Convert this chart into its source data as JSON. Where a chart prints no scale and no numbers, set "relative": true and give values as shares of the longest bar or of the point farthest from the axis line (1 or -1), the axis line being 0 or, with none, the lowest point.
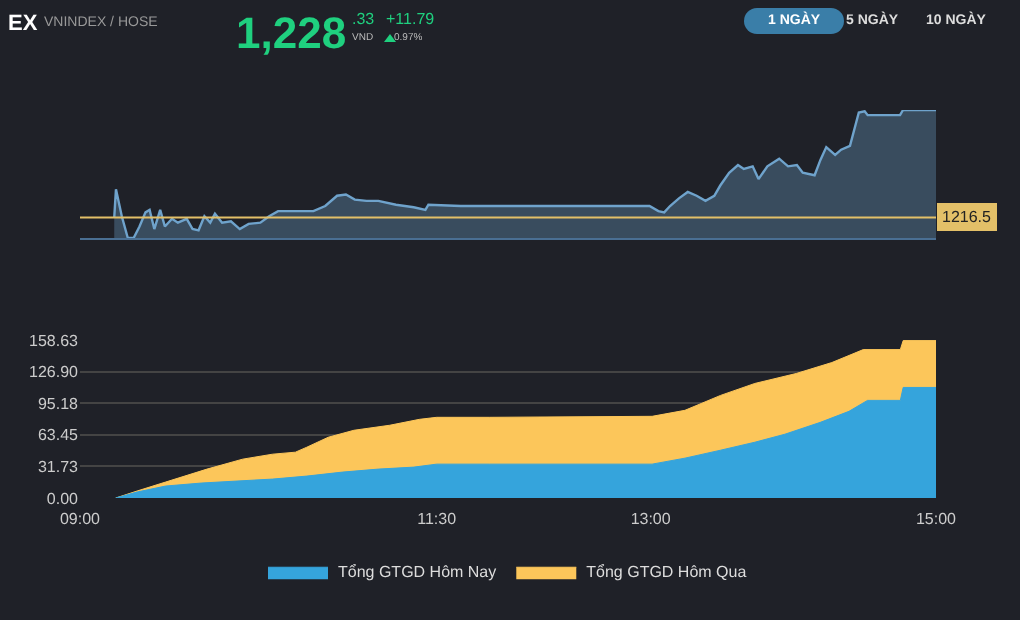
{
  "chart_data": [
    {
      "type": "area",
      "title": "EX",
      "subtitle": "VNINDEX / HOSE",
      "annotations": [
        "1,228",
        ".33",
        "VND",
        "+11.79",
        "0.97%",
        "1 NGÀY",
        "5 NGÀY",
        "10 NGÀY",
        "1216.5"
      ],
      "x": [
        9.24,
        9.252,
        9.293,
        9.335,
        9.376,
        9.417,
        9.459,
        9.488,
        9.521,
        9.562,
        9.595,
        9.645,
        9.686,
        9.748,
        9.789,
        9.831,
        9.872,
        9.913,
        9.946,
        9.996,
        10.058,
        10.12,
        10.182,
        10.264,
        10.326,
        10.388,
        10.512,
        10.636,
        10.719,
        10.802,
        10.864,
        10.926,
        11.008,
        11.091,
        11.215,
        11.339,
        11.421,
        11.442,
        11.669,
        12.992,
        13.054,
        13.095,
        13.136,
        13.198,
        13.26,
        13.322,
        13.384,
        13.446,
        13.488,
        13.55,
        13.612,
        13.653,
        13.715,
        13.756,
        13.818,
        13.901,
        13.963,
        14.025,
        14.066,
        14.149,
        14.19,
        14.231,
        14.293,
        14.335,
        14.397,
        14.459,
        14.5,
        14.521,
        14.748,
        14.769,
        15.0
      ],
      "series": [
        {
          "color": "#6fa3cc",
          "values": [
            0.16,
            0.38,
            0.17,
            0,
            0,
            0.09,
            0.2,
            0.22,
            0.07,
            0.22,
            0.09,
            0.15,
            0.12,
            0.15,
            0.07,
            0.06,
            0.17,
            0.12,
            0.19,
            0.12,
            0.13,
            0.07,
            0.11,
            0.12,
            0.17,
            0.21,
            0.21,
            0.21,
            0.25,
            0.33,
            0.34,
            0.3,
            0.29,
            0.29,
            0.26,
            0.24,
            0.22,
            0.26,
            0.25,
            0.25,
            0.21,
            0.2,
            0.25,
            0.31,
            0.36,
            0.33,
            0.29,
            0.33,
            0.41,
            0.51,
            0.57,
            0.54,
            0.56,
            0.46,
            0.56,
            0.62,
            0.56,
            0.57,
            0.51,
            0.49,
            0.61,
            0.71,
            0.65,
            0.69,
            0.72,
            0.98,
            0.99,
            0.96,
            0.96,
            1,
            1
          ]
        }
      ],
      "xlim": [
        9,
        15
      ],
      "relative": true,
      "ref_lines": [
        {
          "axis": "y",
          "value": 0.16,
          "color": "#e3c068"
        }
      ]
    },
    {
      "type": "area",
      "legend": "bottom",
      "grid": "y",
      "series": [
        {
          "name": "Tổng GTGD Hôm Nay",
          "color": "#35a4dc",
          "x": [
            9.25,
            9.4,
            9.6,
            9.85,
            10.1,
            10.35,
            10.59,
            10.84,
            11.09,
            11.34,
            11.5,
            11.87,
            13.01,
            13.24,
            13.49,
            13.73,
            13.94,
            14.19,
            14.39,
            14.52,
            14.75,
            14.77,
            15.0
          ],
          "values": [
            0,
            6,
            12,
            15,
            17,
            19,
            22,
            26,
            29,
            31,
            34,
            34,
            34,
            40,
            48,
            56,
            64,
            76,
            87,
            98,
            98,
            111,
            111
          ]
        },
        {
          "name": "Tổng GTGD Hôm Qua",
          "color": "#fcc65a",
          "x": [
            9.25,
            9.4,
            9.6,
            9.89,
            10.14,
            10.35,
            10.51,
            10.59,
            10.74,
            10.92,
            11.17,
            11.38,
            11.5,
            11.87,
            13.01,
            13.24,
            13.49,
            13.73,
            14.02,
            14.27,
            14.49,
            14.75,
            14.77,
            15.0
          ],
          "values": [
            0,
            7,
            16,
            29,
            39,
            44,
            46,
            51,
            61,
            68,
            73,
            79,
            81,
            81,
            82,
            88,
            103,
            115,
            125,
            136,
            149,
            149,
            158,
            158
          ]
        }
      ],
      "xlim": [
        9,
        15
      ],
      "xticks": [
        {
          "value": 9,
          "label": "09:00"
        },
        {
          "value": 11.5,
          "label": "11:30"
        },
        {
          "value": 13,
          "label": "13:00"
        },
        {
          "value": 15,
          "label": "15:00"
        }
      ],
      "ylim": [
        0,
        158.63
      ],
      "yticks": [
        {
          "value": 0,
          "label": "0.00"
        },
        31.73,
        63.45,
        95.18,
        {
          "value": 126.9,
          "label": "126.90"
        },
        158.63
      ]
    }
  ]
}
